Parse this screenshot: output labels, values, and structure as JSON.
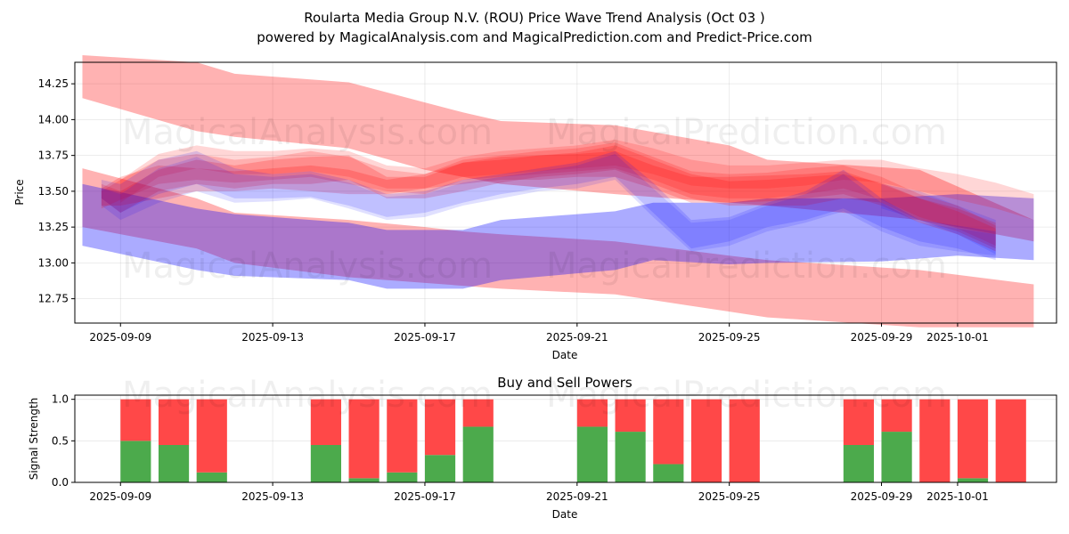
{
  "title_line1": "Roularta Media Group N.V. (ROU) Price Wave Trend Analysis (Oct 03 )",
  "title_line2": "powered by MagicalAnalysis.com and MagicalPrediction.com and Predict-Price.com",
  "watermarks": [
    "MagicalAnalysis.com",
    "MagicalPrediction.com"
  ],
  "colors": {
    "red": "#ff0000",
    "blue": "#0000ff",
    "green": "#4caa4c",
    "sell": "#ff4848"
  },
  "chart_data": [
    {
      "type": "area",
      "title": "Roularta Media Group N.V. (ROU) Price Wave Trend Analysis (Oct 03 )",
      "xlabel": "Date",
      "ylabel": "Price",
      "xlim": [
        -1.2,
        24.6
      ],
      "ylim": [
        12.58,
        14.4
      ],
      "x_ticks": [
        {
          "pos": 0,
          "label": "2025-09-09"
        },
        {
          "pos": 4,
          "label": "2025-09-13"
        },
        {
          "pos": 8,
          "label": "2025-09-17"
        },
        {
          "pos": 12,
          "label": "2025-09-21"
        },
        {
          "pos": 16,
          "label": "2025-09-25"
        },
        {
          "pos": 20,
          "label": "2025-09-29"
        },
        {
          "pos": 22,
          "label": "2025-10-01"
        }
      ],
      "y_ticks": [
        12.75,
        13.0,
        13.25,
        13.5,
        13.75,
        14.0,
        14.25
      ],
      "series": [
        {
          "name": "red band upper",
          "color": "red",
          "opacity": 0.3,
          "x": [
            -1,
            2,
            3,
            6,
            8,
            9,
            10,
            13,
            16,
            17,
            21,
            24
          ],
          "lower": [
            14.15,
            13.92,
            13.88,
            13.8,
            13.65,
            13.6,
            13.55,
            13.48,
            13.42,
            13.4,
            13.3,
            13.15
          ],
          "upper": [
            14.45,
            14.4,
            14.32,
            14.26,
            14.12,
            14.05,
            13.99,
            13.96,
            13.82,
            13.72,
            13.65,
            13.3
          ]
        },
        {
          "name": "red band lower",
          "color": "red",
          "opacity": 0.3,
          "x": [
            -1,
            2,
            3,
            6,
            8,
            9,
            10,
            13,
            16,
            17,
            21,
            24
          ],
          "lower": [
            13.25,
            13.1,
            13.0,
            12.9,
            12.86,
            12.84,
            12.82,
            12.78,
            12.66,
            12.62,
            12.55,
            12.55
          ],
          "upper": [
            13.66,
            13.45,
            13.35,
            13.3,
            13.25,
            13.22,
            13.2,
            13.15,
            13.05,
            13.02,
            12.95,
            12.85
          ]
        },
        {
          "name": "blue band",
          "color": "blue",
          "opacity": 0.33,
          "x": [
            -1,
            2,
            3,
            6,
            7,
            9,
            10,
            13,
            14,
            16,
            17,
            20,
            22,
            24
          ],
          "lower": [
            13.12,
            12.95,
            12.91,
            12.88,
            12.82,
            12.82,
            12.88,
            12.95,
            13.02,
            12.99,
            13.0,
            13.01,
            13.05,
            13.02
          ],
          "upper": [
            13.55,
            13.38,
            13.34,
            13.28,
            13.23,
            13.23,
            13.3,
            13.36,
            13.42,
            13.42,
            13.45,
            13.45,
            13.48,
            13.45
          ]
        },
        {
          "name": "red wave 1",
          "color": "red",
          "opacity": 0.2,
          "x": [
            -0.5,
            0,
            1,
            2,
            3,
            4,
            5,
            6,
            7,
            8,
            9,
            10,
            11,
            12,
            13,
            14,
            15,
            16,
            17,
            18,
            19,
            20,
            21,
            22,
            23
          ],
          "lower": [
            13.45,
            13.35,
            13.5,
            13.55,
            13.52,
            13.55,
            13.55,
            13.58,
            13.45,
            13.45,
            13.5,
            13.56,
            13.6,
            13.62,
            13.65,
            13.55,
            13.45,
            13.4,
            13.4,
            13.4,
            13.45,
            13.42,
            13.3,
            13.22,
            13.1
          ],
          "upper": [
            13.55,
            13.5,
            13.65,
            13.72,
            13.68,
            13.72,
            13.74,
            13.75,
            13.6,
            13.6,
            13.7,
            13.72,
            13.75,
            13.77,
            13.82,
            13.72,
            13.62,
            13.57,
            13.58,
            13.6,
            13.62,
            13.56,
            13.45,
            13.38,
            13.28
          ]
        },
        {
          "name": "red wave 2",
          "color": "red",
          "opacity": 0.2,
          "x": [
            -0.5,
            0,
            1,
            2,
            3,
            4,
            5,
            6,
            7,
            8,
            9,
            10,
            11,
            12,
            13,
            14,
            15,
            16,
            17,
            18,
            19,
            20,
            21,
            22,
            23
          ],
          "lower": [
            13.4,
            13.4,
            13.45,
            13.5,
            13.5,
            13.52,
            13.5,
            13.48,
            13.48,
            13.52,
            13.55,
            13.58,
            13.58,
            13.6,
            13.6,
            13.52,
            13.42,
            13.42,
            13.43,
            13.45,
            13.48,
            13.4,
            13.28,
            13.2,
            13.08
          ],
          "upper": [
            13.52,
            13.6,
            13.68,
            13.66,
            13.64,
            13.66,
            13.68,
            13.65,
            13.58,
            13.62,
            13.7,
            13.74,
            13.75,
            13.76,
            13.78,
            13.68,
            13.6,
            13.6,
            13.61,
            13.62,
            13.64,
            13.55,
            13.45,
            13.36,
            13.24
          ]
        },
        {
          "name": "red wave 3",
          "color": "red",
          "opacity": 0.18,
          "x": [
            -0.5,
            0,
            1,
            2,
            3,
            4,
            5,
            6,
            7,
            8,
            9,
            10,
            11,
            12,
            13,
            14,
            15,
            16,
            17,
            18,
            19,
            20,
            21,
            22,
            23
          ],
          "lower": [
            13.38,
            13.44,
            13.55,
            13.58,
            13.56,
            13.58,
            13.6,
            13.55,
            13.5,
            13.48,
            13.58,
            13.6,
            13.62,
            13.64,
            13.66,
            13.58,
            13.48,
            13.45,
            13.45,
            13.48,
            13.52,
            13.44,
            13.32,
            13.24,
            13.12
          ],
          "upper": [
            13.5,
            13.58,
            13.72,
            13.76,
            13.72,
            13.74,
            13.78,
            13.74,
            13.65,
            13.62,
            13.72,
            13.75,
            13.78,
            13.8,
            13.84,
            13.74,
            13.64,
            13.62,
            13.63,
            13.66,
            13.68,
            13.6,
            13.48,
            13.4,
            13.26
          ]
        },
        {
          "name": "red wave 4",
          "color": "red",
          "opacity": 0.16,
          "x": [
            0,
            1,
            2,
            3,
            4,
            5,
            6,
            7,
            8,
            9,
            10,
            11,
            12,
            13,
            14,
            15,
            16,
            17,
            18,
            19,
            20,
            21,
            22,
            23,
            24
          ],
          "lower": [
            13.42,
            13.6,
            13.66,
            13.62,
            13.62,
            13.64,
            13.6,
            13.52,
            13.52,
            13.6,
            13.62,
            13.64,
            13.66,
            13.68,
            13.62,
            13.54,
            13.52,
            13.52,
            13.54,
            13.58,
            13.56,
            13.5,
            13.44,
            13.38,
            13.3
          ],
          "upper": [
            13.58,
            13.76,
            13.82,
            13.78,
            13.78,
            13.8,
            13.78,
            13.68,
            13.66,
            13.74,
            13.78,
            13.8,
            13.82,
            13.86,
            13.8,
            13.72,
            13.68,
            13.68,
            13.7,
            13.72,
            13.72,
            13.66,
            13.62,
            13.56,
            13.48
          ]
        },
        {
          "name": "blue wave 1",
          "color": "blue",
          "opacity": 0.14,
          "x": [
            -0.5,
            0,
            1,
            2,
            3,
            4,
            5,
            6,
            7,
            8,
            9,
            10,
            11,
            12,
            13,
            14,
            15,
            16,
            17,
            18,
            19,
            20,
            21,
            22,
            23
          ],
          "lower": [
            13.45,
            13.35,
            13.48,
            13.55,
            13.45,
            13.45,
            13.46,
            13.4,
            13.32,
            13.35,
            13.42,
            13.48,
            13.52,
            13.55,
            13.6,
            13.35,
            13.1,
            13.15,
            13.25,
            13.3,
            13.38,
            13.25,
            13.15,
            13.1,
            13.02
          ],
          "upper": [
            13.58,
            13.55,
            13.72,
            13.78,
            13.66,
            13.62,
            13.64,
            13.58,
            13.48,
            13.5,
            13.58,
            13.62,
            13.66,
            13.7,
            13.78,
            13.56,
            13.3,
            13.32,
            13.42,
            13.5,
            13.65,
            13.45,
            13.3,
            13.26,
            13.22
          ]
        },
        {
          "name": "blue wave 2",
          "color": "blue",
          "opacity": 0.12,
          "x": [
            -0.5,
            0,
            1,
            2,
            3,
            4,
            5,
            6,
            7,
            8,
            9,
            10,
            11,
            12,
            13,
            14,
            15,
            16,
            17,
            18,
            19,
            20,
            21,
            22,
            23
          ],
          "lower": [
            13.4,
            13.3,
            13.42,
            13.5,
            13.42,
            13.43,
            13.45,
            13.38,
            13.3,
            13.32,
            13.4,
            13.45,
            13.5,
            13.52,
            13.58,
            13.32,
            13.08,
            13.12,
            13.22,
            13.28,
            13.36,
            13.22,
            13.12,
            13.08,
            13.05
          ],
          "upper": [
            13.52,
            13.48,
            13.66,
            13.74,
            13.62,
            13.6,
            13.62,
            13.56,
            13.46,
            13.48,
            13.56,
            13.6,
            13.64,
            13.68,
            13.76,
            13.52,
            13.28,
            13.3,
            13.4,
            13.48,
            13.62,
            13.42,
            13.28,
            13.24,
            13.2
          ]
        },
        {
          "name": "purple wave",
          "color": "blue",
          "opacity": 0.12,
          "x": [
            20,
            21,
            22,
            23
          ],
          "lower": [
            13.38,
            13.3,
            13.2,
            13.06
          ],
          "upper": [
            13.55,
            13.5,
            13.4,
            13.3
          ]
        }
      ]
    },
    {
      "type": "bar",
      "title": "Buy and Sell Powers",
      "xlabel": "Date",
      "ylabel": "Signal Strength",
      "xlim": [
        -1.2,
        24.6
      ],
      "ylim": [
        0,
        1.05
      ],
      "y_ticks": [
        0.0,
        0.5,
        1.0
      ],
      "x_ticks": [
        {
          "pos": 0,
          "label": "2025-09-09"
        },
        {
          "pos": 4,
          "label": "2025-09-13"
        },
        {
          "pos": 8,
          "label": "2025-09-17"
        },
        {
          "pos": 12,
          "label": "2025-09-21"
        },
        {
          "pos": 16,
          "label": "2025-09-25"
        },
        {
          "pos": 20,
          "label": "2025-09-29"
        },
        {
          "pos": 22,
          "label": "2025-10-01"
        }
      ],
      "bars": [
        {
          "x": 0.4,
          "buy": 0.5
        },
        {
          "x": 1.4,
          "buy": 0.45
        },
        {
          "x": 2.4,
          "buy": 0.12
        },
        {
          "x": 5.4,
          "buy": 0.45
        },
        {
          "x": 6.4,
          "buy": 0.05
        },
        {
          "x": 7.4,
          "buy": 0.12
        },
        {
          "x": 8.4,
          "buy": 0.33
        },
        {
          "x": 9.4,
          "buy": 0.67
        },
        {
          "x": 12.4,
          "buy": 0.67
        },
        {
          "x": 13.4,
          "buy": 0.61
        },
        {
          "x": 14.4,
          "buy": 0.22
        },
        {
          "x": 15.4,
          "buy": 0.0
        },
        {
          "x": 16.4,
          "buy": 0.0
        },
        {
          "x": 19.4,
          "buy": 0.45
        },
        {
          "x": 20.4,
          "buy": 0.61
        },
        {
          "x": 21.4,
          "buy": 0.0
        },
        {
          "x": 22.4,
          "buy": 0.05
        },
        {
          "x": 23.4,
          "buy": 0.0
        }
      ]
    }
  ]
}
